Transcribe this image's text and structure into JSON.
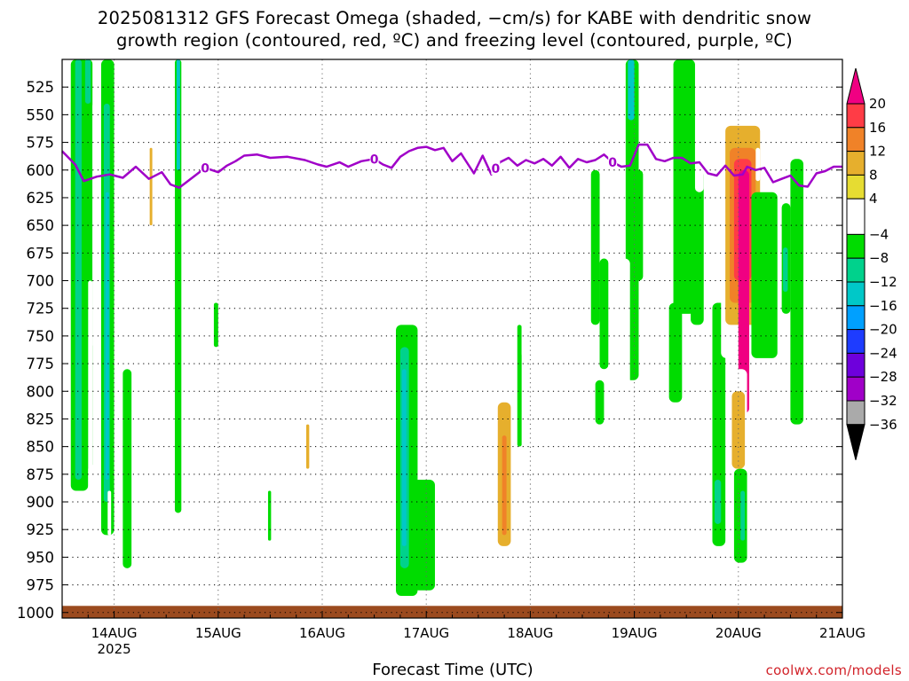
{
  "title_lines": [
    "2025081312 GFS Forecast Omega (shaded, −cm/s) for KABE with dendritic snow",
    "growth region (contoured, red, ºC) and freezing level (contoured, purple, ºC)"
  ],
  "credit": "coolwx.com/models",
  "chart_data": {
    "type": "heatmap",
    "xlabel": "Forecast Time (UTC)",
    "x_ticks": [
      {
        "label": "14AUG",
        "sub": "2025",
        "hours": 12
      },
      {
        "label": "15AUG",
        "sub": "",
        "hours": 36
      },
      {
        "label": "16AUG",
        "sub": "",
        "hours": 60
      },
      {
        "label": "17AUG",
        "sub": "",
        "hours": 84
      },
      {
        "label": "18AUG",
        "sub": "",
        "hours": 108
      },
      {
        "label": "19AUG",
        "sub": "",
        "hours": 132
      },
      {
        "label": "20AUG",
        "sub": "",
        "hours": 156
      },
      {
        "label": "21AUG",
        "sub": "",
        "hours": 180
      }
    ],
    "x_range_hours": [
      0,
      180
    ],
    "y_ticks": [
      525,
      550,
      575,
      600,
      625,
      650,
      675,
      700,
      725,
      750,
      775,
      800,
      825,
      850,
      875,
      900,
      925,
      950,
      975,
      1000
    ],
    "y_range_hpa": [
      500,
      1005
    ],
    "grid": true,
    "colorbar": {
      "labels": [
        "20",
        "16",
        "12",
        "8",
        "4",
        "−4",
        "−8",
        "−12",
        "−16",
        "−20",
        "−24",
        "−28",
        "−32",
        "−36"
      ],
      "segments": [
        {
          "from": 20,
          "to": 16,
          "color": "#ff3c46"
        },
        {
          "from": 16,
          "to": 12,
          "color": "#f08228"
        },
        {
          "from": 12,
          "to": 8,
          "color": "#e6af2d"
        },
        {
          "from": 8,
          "to": 4,
          "color": "#e6dc32"
        },
        {
          "from": 4,
          "to": -4,
          "color": "#ffffff"
        },
        {
          "from": -4,
          "to": -8,
          "color": "#00dc00"
        },
        {
          "from": -8,
          "to": -12,
          "color": "#00d28c"
        },
        {
          "from": -12,
          "to": -16,
          "color": "#00c8c8"
        },
        {
          "from": -16,
          "to": -20,
          "color": "#00a0ff"
        },
        {
          "from": -20,
          "to": -24,
          "color": "#1e3cff"
        },
        {
          "from": -24,
          "to": -28,
          "color": "#6e00dc"
        },
        {
          "from": -28,
          "to": -32,
          "color": "#a000c8"
        },
        {
          "from": -32,
          "to": -36,
          "color": "#aaaaaa"
        }
      ],
      "top_triangle_color": "#f00082",
      "bottom_triangle_color": "#000000"
    },
    "freezing_level": {
      "color": "#a000c8",
      "contour_label": "0",
      "points_hours_hpa": [
        [
          0,
          583
        ],
        [
          3,
          595
        ],
        [
          5,
          610
        ],
        [
          8,
          606
        ],
        [
          11,
          604
        ],
        [
          14,
          607
        ],
        [
          17,
          597
        ],
        [
          20,
          608
        ],
        [
          23,
          602
        ],
        [
          25,
          613
        ],
        [
          27,
          616
        ],
        [
          29,
          610
        ],
        [
          31,
          604
        ],
        [
          33,
          598
        ],
        [
          36,
          602
        ],
        [
          38,
          596
        ],
        [
          40,
          592
        ],
        [
          42,
          587
        ],
        [
          45,
          586
        ],
        [
          48,
          589
        ],
        [
          52,
          588
        ],
        [
          56,
          591
        ],
        [
          59,
          595
        ],
        [
          61,
          597
        ],
        [
          64,
          593
        ],
        [
          66,
          597
        ],
        [
          69,
          592
        ],
        [
          72,
          590
        ],
        [
          74,
          595
        ],
        [
          76,
          598
        ],
        [
          78,
          588
        ],
        [
          80,
          583
        ],
        [
          82,
          580
        ],
        [
          84,
          579
        ],
        [
          86,
          582
        ],
        [
          88,
          580
        ],
        [
          90,
          592
        ],
        [
          92,
          585
        ],
        [
          95,
          603
        ],
        [
          97,
          587
        ],
        [
          99,
          604
        ],
        [
          101,
          593
        ],
        [
          103,
          589
        ],
        [
          105,
          596
        ],
        [
          107,
          591
        ],
        [
          109,
          594
        ],
        [
          111,
          590
        ],
        [
          113,
          596
        ],
        [
          115,
          588
        ],
        [
          117,
          598
        ],
        [
          119,
          590
        ],
        [
          121,
          593
        ],
        [
          123,
          591
        ],
        [
          125,
          586
        ],
        [
          127,
          593
        ],
        [
          129,
          597
        ],
        [
          131,
          596
        ],
        [
          133,
          577
        ],
        [
          135,
          577
        ],
        [
          137,
          590
        ],
        [
          139,
          592
        ],
        [
          141,
          589
        ],
        [
          143,
          589
        ],
        [
          145,
          594
        ],
        [
          147,
          593
        ],
        [
          149,
          603
        ],
        [
          151,
          605
        ],
        [
          153,
          596
        ],
        [
          155,
          605
        ],
        [
          157,
          604
        ],
        [
          158,
          597
        ],
        [
          160,
          600
        ],
        [
          162,
          598
        ],
        [
          164,
          611
        ],
        [
          166,
          608
        ],
        [
          168,
          605
        ],
        [
          170,
          614
        ],
        [
          172,
          615
        ],
        [
          174,
          603
        ],
        [
          176,
          601
        ],
        [
          178,
          597
        ],
        [
          180,
          597
        ]
      ],
      "label_positions_hours": [
        33,
        72,
        100,
        127
      ]
    },
    "omega_regions": [
      {
        "category": "-4",
        "x": [
          2,
          6
        ],
        "p": [
          500,
          890
        ]
      },
      {
        "category": "-8",
        "x": [
          3,
          4.5
        ],
        "p": [
          500,
          880
        ]
      },
      {
        "category": "-4",
        "x": [
          5,
          7
        ],
        "p": [
          500,
          870
        ]
      },
      {
        "category": "-8",
        "x": [
          5.3,
          6.6
        ],
        "p": [
          500,
          540
        ]
      },
      {
        "category": "4",
        "x": [
          7,
          8
        ],
        "p": [
          540,
          760
        ]
      },
      {
        "category": "4",
        "x": [
          6,
          7
        ],
        "p": [
          700,
          920
        ]
      },
      {
        "category": "-4",
        "x": [
          9,
          12
        ],
        "p": [
          500,
          930
        ]
      },
      {
        "category": "-8",
        "x": [
          9.6,
          11
        ],
        "p": [
          540,
          900
        ]
      },
      {
        "category": "-12",
        "x": [
          10,
          10.8
        ],
        "p": [
          620,
          880
        ]
      },
      {
        "category": "4",
        "x": [
          12,
          13
        ],
        "p": [
          600,
          940
        ]
      },
      {
        "category": "4",
        "x": [
          10.5,
          11.3
        ],
        "p": [
          890,
          930
        ]
      },
      {
        "category": "4",
        "x": [
          13,
          14
        ],
        "p": [
          560,
          620
        ]
      },
      {
        "category": "4",
        "x": [
          14,
          15.5
        ],
        "p": [
          640,
          820
        ]
      },
      {
        "category": "-4",
        "x": [
          14,
          16
        ],
        "p": [
          780,
          960
        ]
      },
      {
        "category": "4",
        "x": [
          12,
          12.8
        ],
        "p": [
          560,
          620
        ]
      },
      {
        "category": "4",
        "x": [
          20,
          21
        ],
        "p": [
          540,
          680
        ]
      },
      {
        "category": "8",
        "x": [
          20.2,
          20.8
        ],
        "p": [
          580,
          650
        ]
      },
      {
        "category": "4",
        "x": [
          21,
          22
        ],
        "p": [
          630,
          690
        ]
      },
      {
        "category": "4",
        "x": [
          23,
          23.8
        ],
        "p": [
          520,
          560
        ]
      },
      {
        "category": "-4",
        "x": [
          26,
          27.5
        ],
        "p": [
          500,
          910
        ]
      },
      {
        "category": "-12",
        "x": [
          26.4,
          27.2
        ],
        "p": [
          500,
          600
        ]
      },
      {
        "category": "4",
        "x": [
          28,
          29
        ],
        "p": [
          500,
          515
        ]
      },
      {
        "category": "4",
        "x": [
          35,
          36
        ],
        "p": [
          650,
          700
        ]
      },
      {
        "category": "-4",
        "x": [
          35,
          36
        ],
        "p": [
          720,
          760
        ]
      },
      {
        "category": "4",
        "x": [
          37,
          38
        ],
        "p": [
          820,
          910
        ]
      },
      {
        "category": "4",
        "x": [
          49,
          50
        ],
        "p": [
          710,
          750
        ]
      },
      {
        "category": "-4",
        "x": [
          47.5,
          48.2
        ],
        "p": [
          890,
          935
        ]
      },
      {
        "category": "4",
        "x": [
          56,
          57.5
        ],
        "p": [
          820,
          915
        ]
      },
      {
        "category": "8",
        "x": [
          56.3,
          57
        ],
        "p": [
          830,
          870
        ]
      },
      {
        "category": "4",
        "x": [
          72,
          73.5
        ],
        "p": [
          740,
          820
        ]
      },
      {
        "category": "4",
        "x": [
          77.5,
          78.5
        ],
        "p": [
          615,
          700
        ]
      },
      {
        "category": "-4",
        "x": [
          77,
          82
        ],
        "p": [
          740,
          985
        ]
      },
      {
        "category": "-8",
        "x": [
          78,
          80
        ],
        "p": [
          760,
          960
        ]
      },
      {
        "category": "-12",
        "x": [
          78.4,
          79.4
        ],
        "p": [
          780,
          940
        ]
      },
      {
        "category": "-4",
        "x": [
          81,
          86
        ],
        "p": [
          880,
          980
        ]
      },
      {
        "category": "4",
        "x": [
          82,
          84
        ],
        "p": [
          500,
          620
        ]
      },
      {
        "category": "4",
        "x": [
          83,
          85
        ],
        "p": [
          650,
          760
        ]
      },
      {
        "category": "4",
        "x": [
          86,
          88
        ],
        "p": [
          700,
          800
        ]
      },
      {
        "category": "4",
        "x": [
          91,
          92
        ],
        "p": [
          720,
          760
        ]
      },
      {
        "category": "4",
        "x": [
          92,
          93
        ],
        "p": [
          760,
          860
        ]
      },
      {
        "category": "4",
        "x": [
          94,
          96
        ],
        "p": [
          600,
          660
        ]
      },
      {
        "category": "4",
        "x": [
          99,
          105
        ],
        "p": [
          790,
          970
        ]
      },
      {
        "category": "8",
        "x": [
          100.5,
          103.5
        ],
        "p": [
          810,
          940
        ]
      },
      {
        "category": "12",
        "x": [
          101.5,
          102.5
        ],
        "p": [
          840,
          930
        ]
      },
      {
        "category": "4",
        "x": [
          103,
          105
        ],
        "p": [
          640,
          720
        ]
      },
      {
        "category": "-4",
        "x": [
          105,
          106
        ],
        "p": [
          740,
          850
        ]
      },
      {
        "category": "4",
        "x": [
          106,
          108
        ],
        "p": [
          720,
          770
        ]
      },
      {
        "category": "4",
        "x": [
          109,
          111
        ],
        "p": [
          700,
          770
        ]
      },
      {
        "category": "4",
        "x": [
          112,
          113
        ],
        "p": [
          540,
          590
        ]
      },
      {
        "category": "4",
        "x": [
          114,
          115
        ],
        "p": [
          550,
          600
        ]
      },
      {
        "category": "-4",
        "x": [
          122,
          124
        ],
        "p": [
          600,
          740
        ]
      },
      {
        "category": "-4",
        "x": [
          124,
          126
        ],
        "p": [
          680,
          780
        ]
      },
      {
        "category": "-4",
        "x": [
          123,
          125
        ],
        "p": [
          790,
          830
        ]
      },
      {
        "category": "4",
        "x": [
          125,
          126
        ],
        "p": [
          880,
          910
        ]
      },
      {
        "category": "-4",
        "x": [
          130,
          133
        ],
        "p": [
          500,
          790
        ]
      },
      {
        "category": "-12",
        "x": [
          130.5,
          132
        ],
        "p": [
          500,
          555
        ]
      },
      {
        "category": "4",
        "x": [
          128,
          131
        ],
        "p": [
          680,
          810
        ]
      },
      {
        "category": "-4",
        "x": [
          132,
          134
        ],
        "p": [
          600,
          700
        ]
      },
      {
        "category": "4",
        "x": [
          138,
          141
        ],
        "p": [
          500,
          520
        ]
      },
      {
        "category": "-4",
        "x": [
          141,
          146
        ],
        "p": [
          500,
          730
        ]
      },
      {
        "category": "-4",
        "x": [
          140,
          143
        ],
        "p": [
          720,
          810
        ]
      },
      {
        "category": "-4",
        "x": [
          145,
          148
        ],
        "p": [
          600,
          740
        ]
      },
      {
        "category": "4",
        "x": [
          146,
          148
        ],
        "p": [
          560,
          620
        ]
      },
      {
        "category": "-4",
        "x": [
          150,
          153
        ],
        "p": [
          720,
          940
        ]
      },
      {
        "category": "-8",
        "x": [
          150.5,
          152
        ],
        "p": [
          880,
          920
        ]
      },
      {
        "category": "4",
        "x": [
          151,
          154
        ],
        "p": [
          500,
          530
        ]
      },
      {
        "category": "4",
        "x": [
          152,
          162
        ],
        "p": [
          530,
          770
        ]
      },
      {
        "category": "8",
        "x": [
          153,
          161
        ],
        "p": [
          560,
          740
        ]
      },
      {
        "category": "12",
        "x": [
          154,
          160
        ],
        "p": [
          580,
          720
        ]
      },
      {
        "category": "16",
        "x": [
          155,
          159
        ],
        "p": [
          590,
          700
        ]
      },
      {
        "category": "20",
        "x": [
          156,
          158.5
        ],
        "p": [
          600,
          820
        ]
      },
      {
        "category": "4",
        "x": [
          154,
          158
        ],
        "p": [
          780,
          900
        ]
      },
      {
        "category": "8",
        "x": [
          154.5,
          157.5
        ],
        "p": [
          800,
          870
        ]
      },
      {
        "category": "-4",
        "x": [
          155,
          158
        ],
        "p": [
          870,
          955
        ]
      },
      {
        "category": "-8",
        "x": [
          156.5,
          157.5
        ],
        "p": [
          890,
          935
        ]
      },
      {
        "category": "-4",
        "x": [
          159,
          165
        ],
        "p": [
          620,
          770
        ]
      },
      {
        "category": "4",
        "x": [
          160,
          161
        ],
        "p": [
          580,
          610
        ]
      },
      {
        "category": "-4",
        "x": [
          166,
          168
        ],
        "p": [
          630,
          730
        ]
      },
      {
        "category": "-8",
        "x": [
          166.3,
          167.4
        ],
        "p": [
          670,
          710
        ]
      },
      {
        "category": "-4",
        "x": [
          168,
          171
        ],
        "p": [
          590,
          830
        ]
      },
      {
        "category": "4",
        "x": [
          177,
          179
        ],
        "p": [
          640,
          700
        ]
      }
    ],
    "ground_pressure_hpa": 990,
    "ground_color": "#9b4a1e"
  }
}
